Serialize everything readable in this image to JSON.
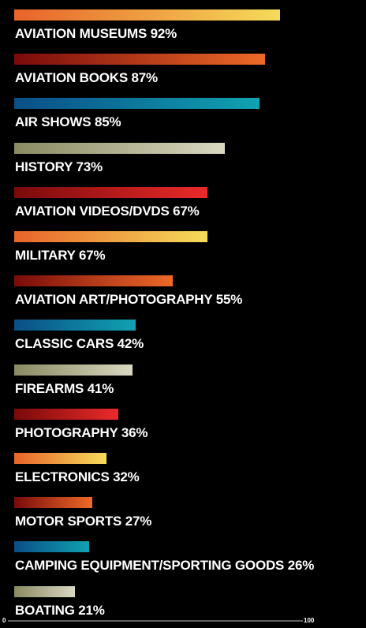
{
  "chart_data": {
    "type": "bar",
    "orientation": "horizontal",
    "xlim": [
      0,
      100
    ],
    "x_ticks": [
      "0",
      "100"
    ],
    "categories": [
      {
        "name": "AVIATION MUSEUMS",
        "value": 92,
        "label": "AVIATION MUSEUMS 92%"
      },
      {
        "name": "AVIATION BOOKS",
        "value": 87,
        "label": "AVIATION BOOKS 87%"
      },
      {
        "name": "AIR SHOWS",
        "value": 85,
        "label": "AIR SHOWS 85%"
      },
      {
        "name": "HISTORY",
        "value": 73,
        "label": "HISTORY 73%"
      },
      {
        "name": "AVIATION VIDEOS/DVDS",
        "value": 67,
        "label": "AVIATION VIDEOS/DVDS 67%"
      },
      {
        "name": "MILITARY",
        "value": 67,
        "label": "MILITARY 67%"
      },
      {
        "name": "AVIATION ART/PHOTOGRAPHY",
        "value": 55,
        "label": "AVIATION ART/PHOTOGRAPHY 55%"
      },
      {
        "name": "CLASSIC CARS",
        "value": 42,
        "label": "CLASSIC CARS 42%"
      },
      {
        "name": "FIREARMS",
        "value": 41,
        "label": "FIREARMS 41%"
      },
      {
        "name": "PHOTOGRAPHY",
        "value": 36,
        "label": "PHOTOGRAPHY 36%"
      },
      {
        "name": "ELECTRONICS",
        "value": 32,
        "label": "ELECTRONICS 32%"
      },
      {
        "name": "MOTOR SPORTS",
        "value": 27,
        "label": "MOTOR SPORTS 27%"
      },
      {
        "name": "CAMPING EQUIPMENT/SPORTING GOODS",
        "value": 26,
        "label": "CAMPING EQUIPMENT/SPORTING GOODS  26%"
      },
      {
        "name": "BOATING",
        "value": 21,
        "label": "BOATING 21%"
      }
    ],
    "bar_gradients": [
      [
        "#e8632a",
        "#f5dc5a"
      ],
      [
        "#7a0a0a",
        "#ee6a28"
      ],
      [
        "#0a4e86",
        "#10a2b2"
      ],
      [
        "#8a8a62",
        "#d9d8c2"
      ],
      [
        "#7a0a0a",
        "#ec2a2a"
      ],
      [
        "#e8632a",
        "#f5dc5a"
      ],
      [
        "#7a0a0a",
        "#ee6a28"
      ],
      [
        "#0a4e86",
        "#10a2b2"
      ],
      [
        "#8a8a62",
        "#d9d8c2"
      ],
      [
        "#7a0a0a",
        "#ec2a2a"
      ],
      [
        "#e8632a",
        "#f5dc5a"
      ],
      [
        "#7a0a0a",
        "#ee6a28"
      ],
      [
        "#0a4e86",
        "#10a2b2"
      ],
      [
        "#8a8a62",
        "#d9d8c2"
      ]
    ],
    "background": "#000000",
    "text_color": "#ffffff"
  }
}
